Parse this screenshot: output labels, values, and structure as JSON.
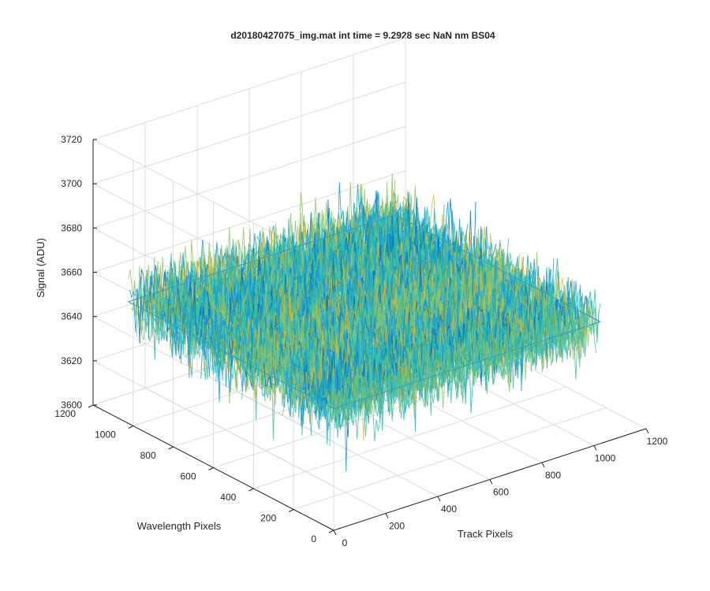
{
  "chart_data": {
    "type": "surface",
    "title": "d20180427075_img.mat int time = 9.2928 sec  NaN nm BS04",
    "xlabel": "Track Pixels",
    "ylabel": "Wavelength Pixels",
    "zlabel": "Signal (ADU)",
    "xlim": [
      0,
      1200
    ],
    "ylim": [
      0,
      1200
    ],
    "zlim": [
      3600,
      3720
    ],
    "x_ticks": [
      "0",
      "200",
      "400",
      "600",
      "800",
      "1000",
      "1200"
    ],
    "y_ticks": [
      "0",
      "200",
      "400",
      "600",
      "800",
      "1000",
      "1200"
    ],
    "z_ticks": [
      "3600",
      "3620",
      "3640",
      "3660",
      "3680",
      "3700",
      "3720"
    ],
    "data_extent": {
      "x": [
        0,
        1024
      ],
      "y": [
        0,
        1024
      ]
    },
    "signal_mean": 3655,
    "signal_min": 3615,
    "signal_max": 3705,
    "grid": true,
    "colormap": [
      "#0072bd",
      "#1098d6",
      "#21b5c0",
      "#3fbf9f",
      "#8cc36b",
      "#e0b832"
    ]
  }
}
